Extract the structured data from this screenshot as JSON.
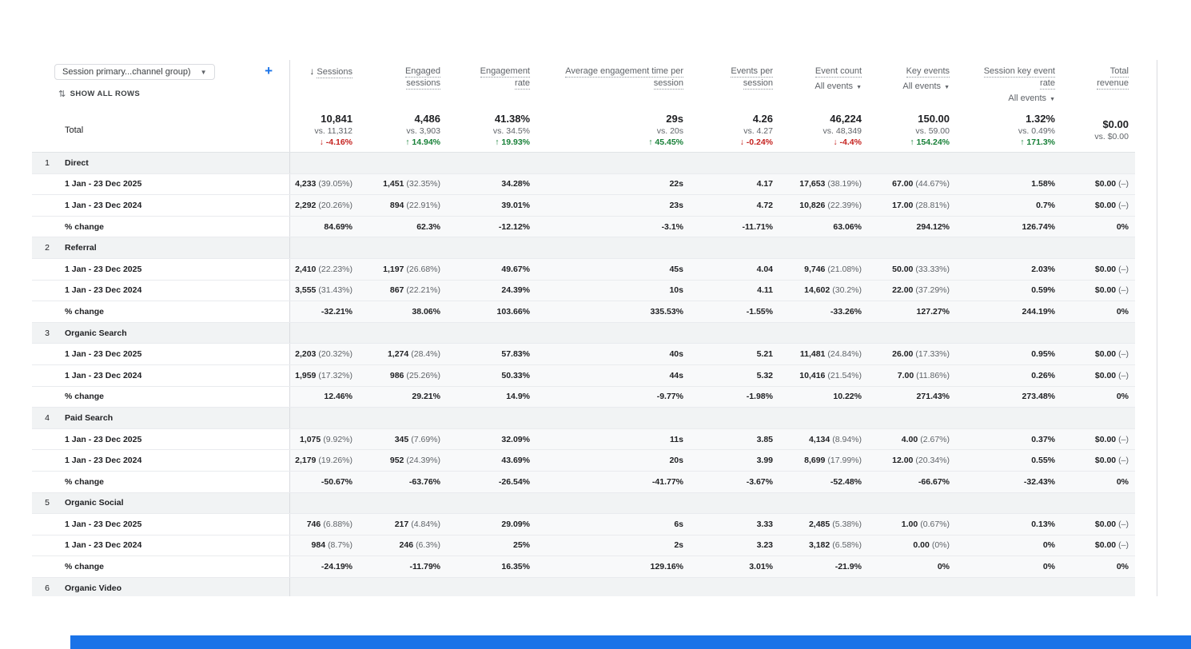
{
  "controls": {
    "dimension_selector": "Session primary...channel group)",
    "add_label": "+",
    "show_all_rows": "SHOW ALL ROWS"
  },
  "accent_colors": {
    "positive": "#188038",
    "negative": "#c5221f",
    "link_blue": "#1a73e8"
  },
  "columns": [
    {
      "id": "sessions",
      "lines": [
        "Sessions"
      ],
      "sorted": true
    },
    {
      "id": "engaged-sessions",
      "lines": [
        "Engaged",
        "sessions"
      ]
    },
    {
      "id": "engagement-rate",
      "lines": [
        "Engagement",
        "rate"
      ]
    },
    {
      "id": "avg-engagement-time-per-session",
      "lines": [
        "Average engagement time per",
        "session"
      ]
    },
    {
      "id": "events-per-session",
      "lines": [
        "Events per",
        "session"
      ]
    },
    {
      "id": "event-count",
      "lines": [
        "Event count"
      ],
      "filter": "All events"
    },
    {
      "id": "key-events",
      "lines": [
        "Key events"
      ],
      "filter": "All events"
    },
    {
      "id": "session-key-event-rate",
      "lines": [
        "Session key event",
        "rate"
      ],
      "filter": "All events"
    },
    {
      "id": "total-revenue",
      "lines": [
        "Total",
        "revenue"
      ]
    }
  ],
  "total": {
    "label": "Total",
    "metrics": [
      {
        "value": "10,841",
        "vs": "vs. 11,312",
        "change": "-4.16%",
        "dir": "down"
      },
      {
        "value": "4,486",
        "vs": "vs. 3,903",
        "change": "14.94%",
        "dir": "up"
      },
      {
        "value": "41.38%",
        "vs": "vs. 34.5%",
        "change": "19.93%",
        "dir": "up"
      },
      {
        "value": "29s",
        "vs": "vs. 20s",
        "change": "45.45%",
        "dir": "up"
      },
      {
        "value": "4.26",
        "vs": "vs. 4.27",
        "change": "-0.24%",
        "dir": "down"
      },
      {
        "value": "46,224",
        "vs": "vs. 48,349",
        "change": "-4.4%",
        "dir": "down"
      },
      {
        "value": "150.00",
        "vs": "vs. 59.00",
        "change": "154.24%",
        "dir": "up"
      },
      {
        "value": "1.32%",
        "vs": "vs. 0.49%",
        "change": "171.3%",
        "dir": "up"
      },
      {
        "value": "$0.00",
        "vs": "vs. $0.00",
        "change": null,
        "dir": null
      }
    ]
  },
  "groups": [
    {
      "num": "1",
      "name": "Direct",
      "rows": [
        {
          "label": "1 Jan - 23 Dec 2025",
          "cells": [
            "4,233 (39.05%)",
            "1,451 (32.35%)",
            "34.28%",
            "22s",
            "4.17",
            "17,653 (38.19%)",
            "67.00 (44.67%)",
            "1.58%",
            "$0.00 (–)"
          ]
        },
        {
          "label": "1 Jan - 23 Dec 2024",
          "cells": [
            "2,292 (20.26%)",
            "894 (22.91%)",
            "39.01%",
            "23s",
            "4.72",
            "10,826 (22.39%)",
            "17.00 (28.81%)",
            "0.7%",
            "$0.00 (–)"
          ]
        },
        {
          "label": "% change",
          "cells": [
            "84.69%",
            "62.3%",
            "-12.12%",
            "-3.1%",
            "-11.71%",
            "63.06%",
            "294.12%",
            "126.74%",
            "0%"
          ]
        }
      ]
    },
    {
      "num": "2",
      "name": "Referral",
      "rows": [
        {
          "label": "1 Jan - 23 Dec 2025",
          "cells": [
            "2,410 (22.23%)",
            "1,197 (26.68%)",
            "49.67%",
            "45s",
            "4.04",
            "9,746 (21.08%)",
            "50.00 (33.33%)",
            "2.03%",
            "$0.00 (–)"
          ]
        },
        {
          "label": "1 Jan - 23 Dec 2024",
          "cells": [
            "3,555 (31.43%)",
            "867 (22.21%)",
            "24.39%",
            "10s",
            "4.11",
            "14,602 (30.2%)",
            "22.00 (37.29%)",
            "0.59%",
            "$0.00 (–)"
          ]
        },
        {
          "label": "% change",
          "cells": [
            "-32.21%",
            "38.06%",
            "103.66%",
            "335.53%",
            "-1.55%",
            "-33.26%",
            "127.27%",
            "244.19%",
            "0%"
          ]
        }
      ]
    },
    {
      "num": "3",
      "name": "Organic Search",
      "rows": [
        {
          "label": "1 Jan - 23 Dec 2025",
          "cells": [
            "2,203 (20.32%)",
            "1,274 (28.4%)",
            "57.83%",
            "40s",
            "5.21",
            "11,481 (24.84%)",
            "26.00 (17.33%)",
            "0.95%",
            "$0.00 (–)"
          ]
        },
        {
          "label": "1 Jan - 23 Dec 2024",
          "cells": [
            "1,959 (17.32%)",
            "986 (25.26%)",
            "50.33%",
            "44s",
            "5.32",
            "10,416 (21.54%)",
            "7.00 (11.86%)",
            "0.26%",
            "$0.00 (–)"
          ]
        },
        {
          "label": "% change",
          "cells": [
            "12.46%",
            "29.21%",
            "14.9%",
            "-9.77%",
            "-1.98%",
            "10.22%",
            "271.43%",
            "273.48%",
            "0%"
          ]
        }
      ]
    },
    {
      "num": "4",
      "name": "Paid Search",
      "rows": [
        {
          "label": "1 Jan - 23 Dec 2025",
          "cells": [
            "1,075 (9.92%)",
            "345 (7.69%)",
            "32.09%",
            "11s",
            "3.85",
            "4,134 (8.94%)",
            "4.00 (2.67%)",
            "0.37%",
            "$0.00 (–)"
          ]
        },
        {
          "label": "1 Jan - 23 Dec 2024",
          "cells": [
            "2,179 (19.26%)",
            "952 (24.39%)",
            "43.69%",
            "20s",
            "3.99",
            "8,699 (17.99%)",
            "12.00 (20.34%)",
            "0.55%",
            "$0.00 (–)"
          ]
        },
        {
          "label": "% change",
          "cells": [
            "-50.67%",
            "-63.76%",
            "-26.54%",
            "-41.77%",
            "-3.67%",
            "-52.48%",
            "-66.67%",
            "-32.43%",
            "0%"
          ]
        }
      ]
    },
    {
      "num": "5",
      "name": "Organic Social",
      "rows": [
        {
          "label": "1 Jan - 23 Dec 2025",
          "cells": [
            "746 (6.88%)",
            "217 (4.84%)",
            "29.09%",
            "6s",
            "3.33",
            "2,485 (5.38%)",
            "1.00 (0.67%)",
            "0.13%",
            "$0.00 (–)"
          ]
        },
        {
          "label": "1 Jan - 23 Dec 2024",
          "cells": [
            "984 (8.7%)",
            "246 (6.3%)",
            "25%",
            "2s",
            "3.23",
            "3,182 (6.58%)",
            "0.00 (0%)",
            "0%",
            "$0.00 (–)"
          ]
        },
        {
          "label": "% change",
          "cells": [
            "-24.19%",
            "-11.79%",
            "16.35%",
            "129.16%",
            "3.01%",
            "-21.9%",
            "0%",
            "0%",
            "0%"
          ]
        }
      ]
    },
    {
      "num": "6",
      "name": "Organic Video",
      "rows": []
    }
  ]
}
